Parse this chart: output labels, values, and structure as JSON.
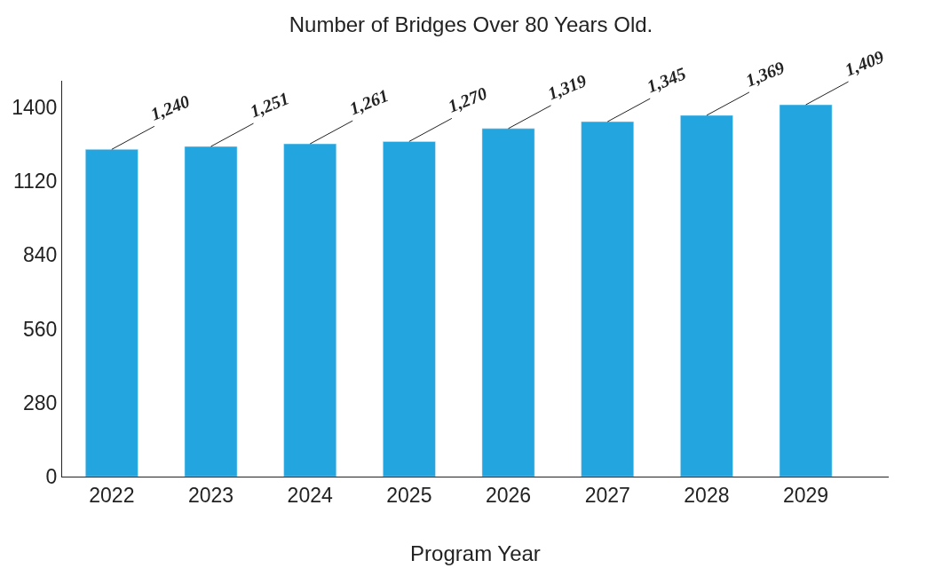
{
  "chart_data": {
    "type": "bar",
    "title": "Number of Bridges Over 80 Years Old.",
    "xlabel": "Program Year",
    "categories": [
      "2022",
      "2023",
      "2024",
      "2025",
      "2026",
      "2027",
      "2028",
      "2029"
    ],
    "values": [
      1240,
      1251,
      1261,
      1270,
      1319,
      1345,
      1369,
      1409
    ],
    "value_labels": [
      "1,240",
      "1,251",
      "1,261",
      "1,270",
      "1,319",
      "1,345",
      "1,369",
      "1,409"
    ],
    "color": "#23a6e0",
    "ylim": [
      0,
      1500
    ],
    "yticks": [
      0,
      280,
      560,
      840,
      1120,
      1400
    ]
  }
}
